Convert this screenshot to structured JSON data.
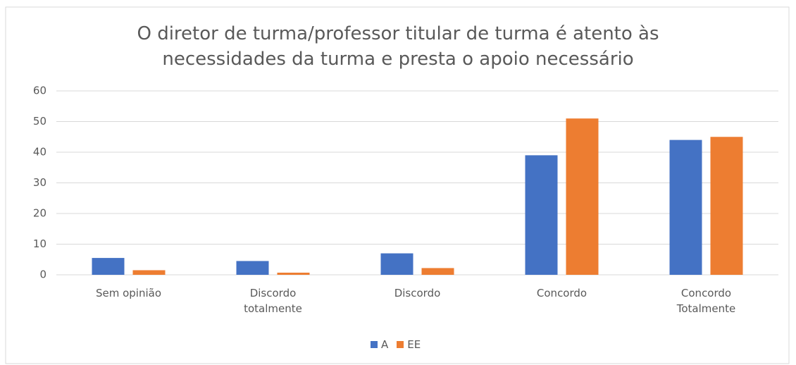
{
  "chart_data": {
    "type": "bar",
    "title": "O diretor de turma/professor titular de turma é atento às necessidades da turma e presta o apoio necessário",
    "categories": [
      "Sem opinião",
      "Discordo totalmente",
      "Discordo",
      "Concordo",
      "Concordo Totalmente"
    ],
    "series": [
      {
        "name": "A",
        "color": "#4472c4",
        "values": [
          5.5,
          4.5,
          7,
          39,
          44
        ]
      },
      {
        "name": "EE",
        "color": "#ed7d31",
        "values": [
          1.5,
          0.7,
          2.2,
          51,
          45
        ]
      }
    ],
    "ylim": [
      0,
      60
    ],
    "yticks": [
      0,
      10,
      20,
      30,
      40,
      50,
      60
    ],
    "grid": true,
    "legend": "bottom"
  }
}
